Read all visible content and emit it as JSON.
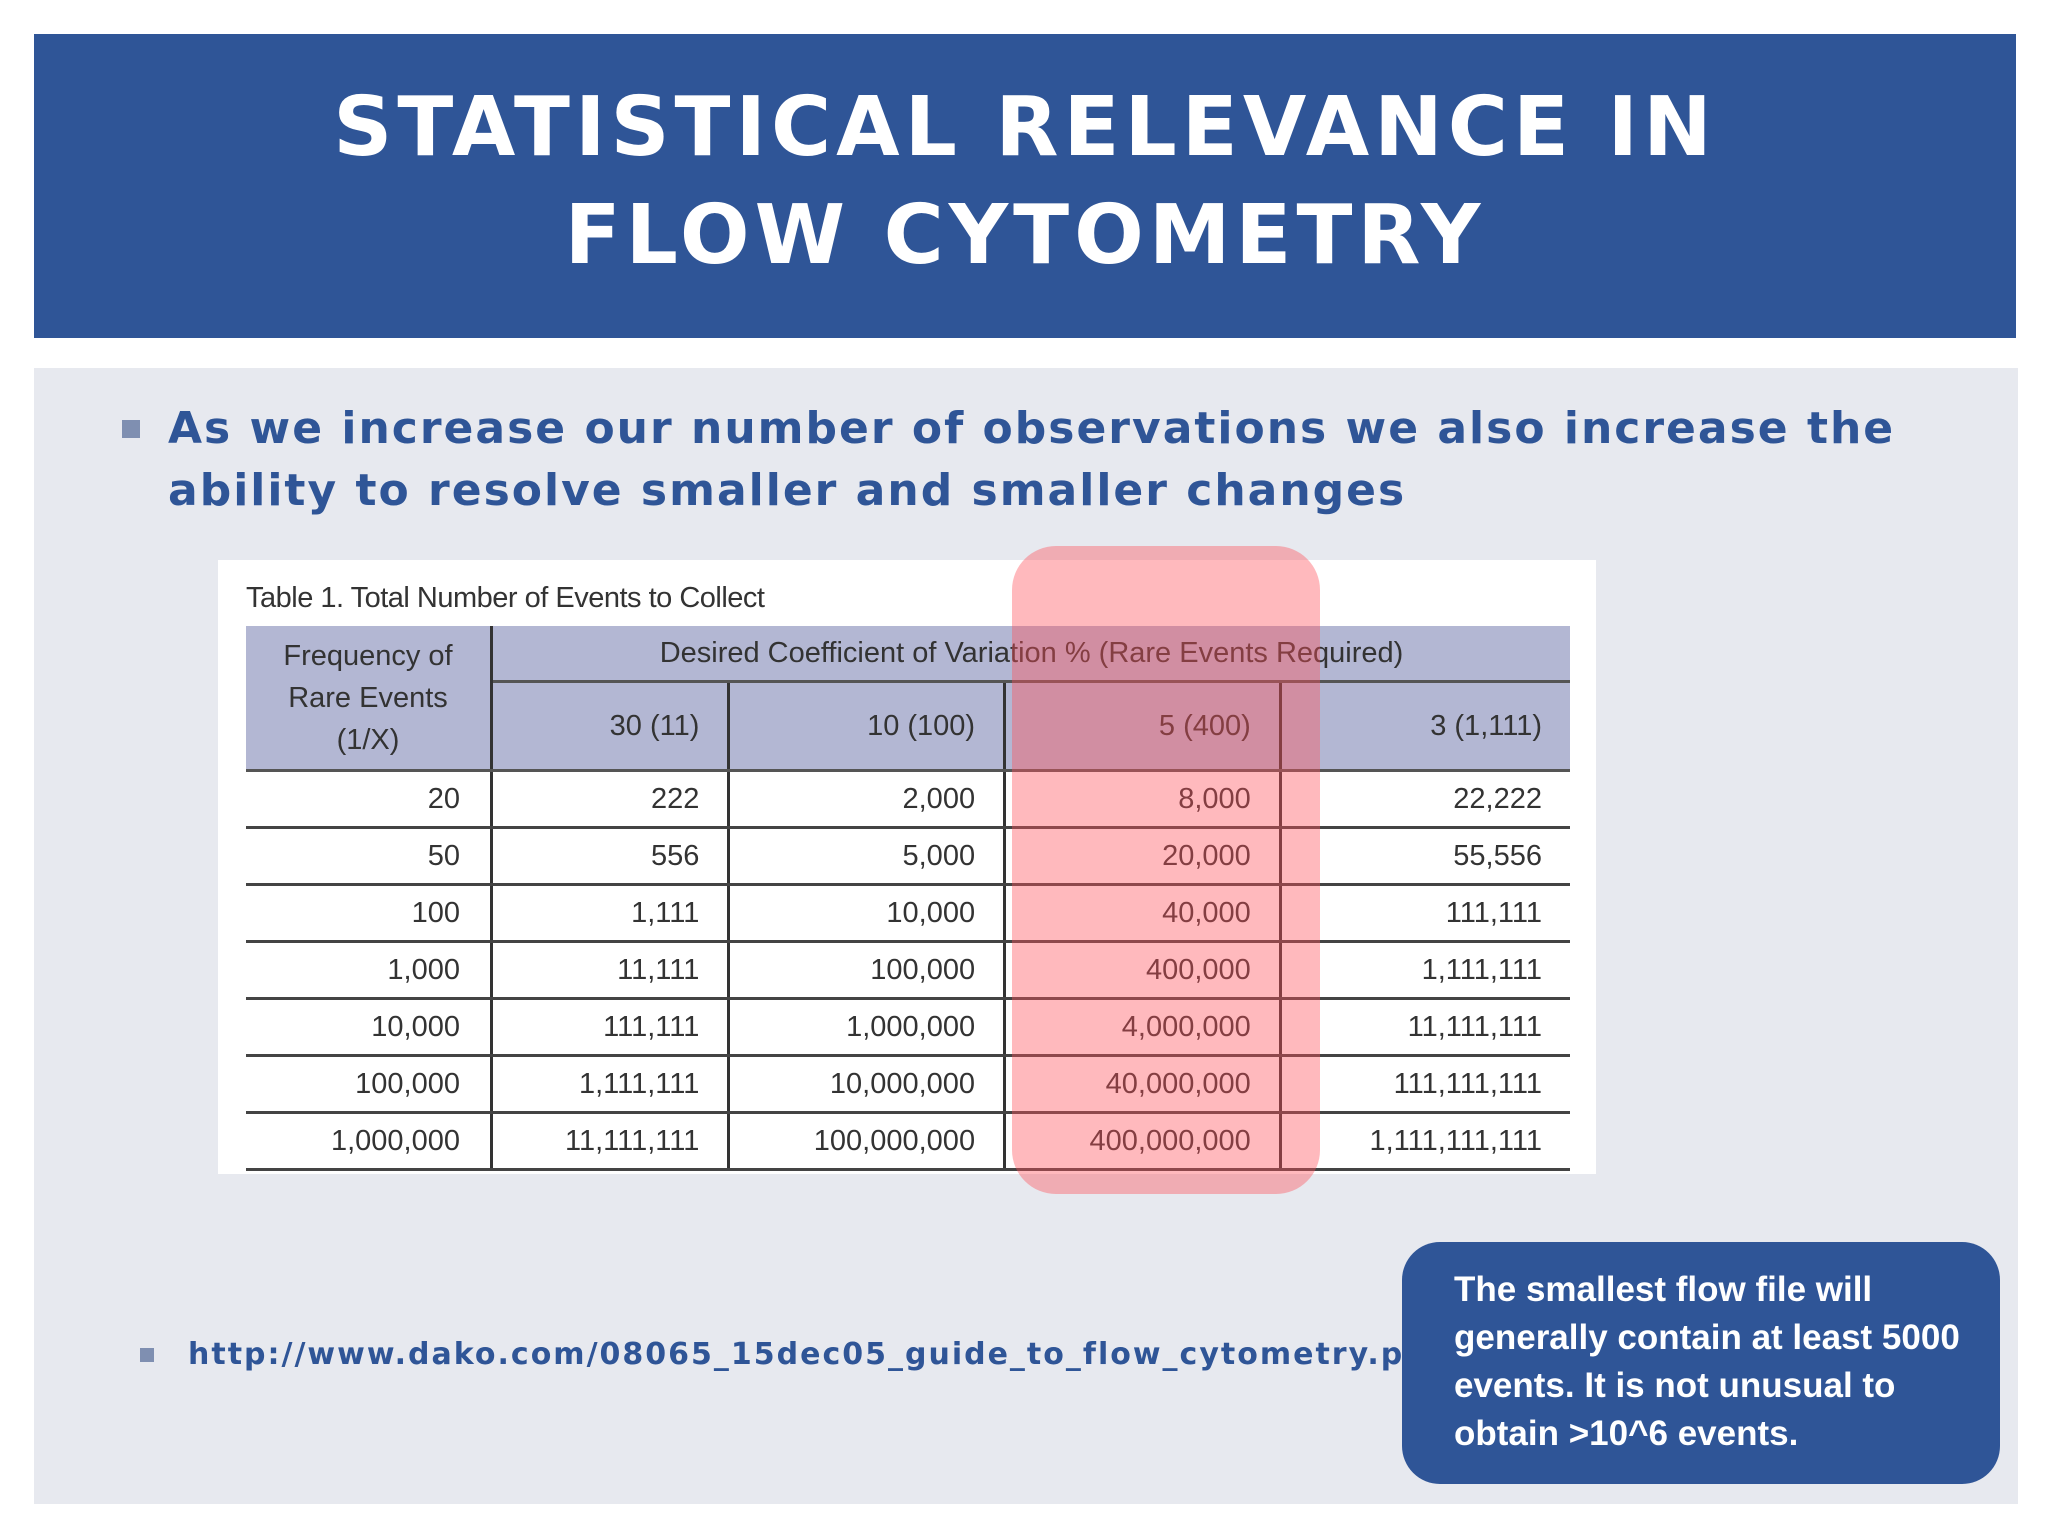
{
  "title": "STATISTICAL RELEVANCE IN FLOW CYTOMETRY",
  "main_bullet": "As we increase our number of observations we also increase the ability to resolve smaller and smaller changes",
  "table": {
    "caption": "Table 1. Total Number of Events to Collect",
    "freq_header": [
      "Frequency of",
      "Rare Events",
      "(1/X)"
    ],
    "cv_header": "Desired Coefficient of Variation % (Rare Events Required)",
    "columns": [
      "30 (11)",
      "10 (100)",
      "5 (400)",
      "3 (1,111)"
    ],
    "rows": [
      [
        "20",
        "222",
        "2,000",
        "8,000",
        "22,222"
      ],
      [
        "50",
        "556",
        "5,000",
        "20,000",
        "55,556"
      ],
      [
        "100",
        "1,111",
        "10,000",
        "40,000",
        "111,111"
      ],
      [
        "1,000",
        "11,111",
        "100,000",
        "400,000",
        "1,111,111"
      ],
      [
        "10,000",
        "111,111",
        "1,000,000",
        "4,000,000",
        "11,111,111"
      ],
      [
        "100,000",
        "1,111,111",
        "10,000,000",
        "40,000,000",
        "111,111,111"
      ],
      [
        "1,000,000",
        "11,111,111",
        "100,000,000",
        "400,000,000",
        "1,111,111,111"
      ]
    ],
    "highlight_color": "#ff505a"
  },
  "source": "http://www.dako.com/08065_15dec05_guide_to_flow_cytometry.pdf",
  "callout": "The smallest flow file will generally contain at least 5000 events. It is not unusual to obtain >10^6 events.",
  "colors": {
    "accent": "#2f5597",
    "panel": "#e7e9ef",
    "table_header": "#b3b7d3"
  }
}
